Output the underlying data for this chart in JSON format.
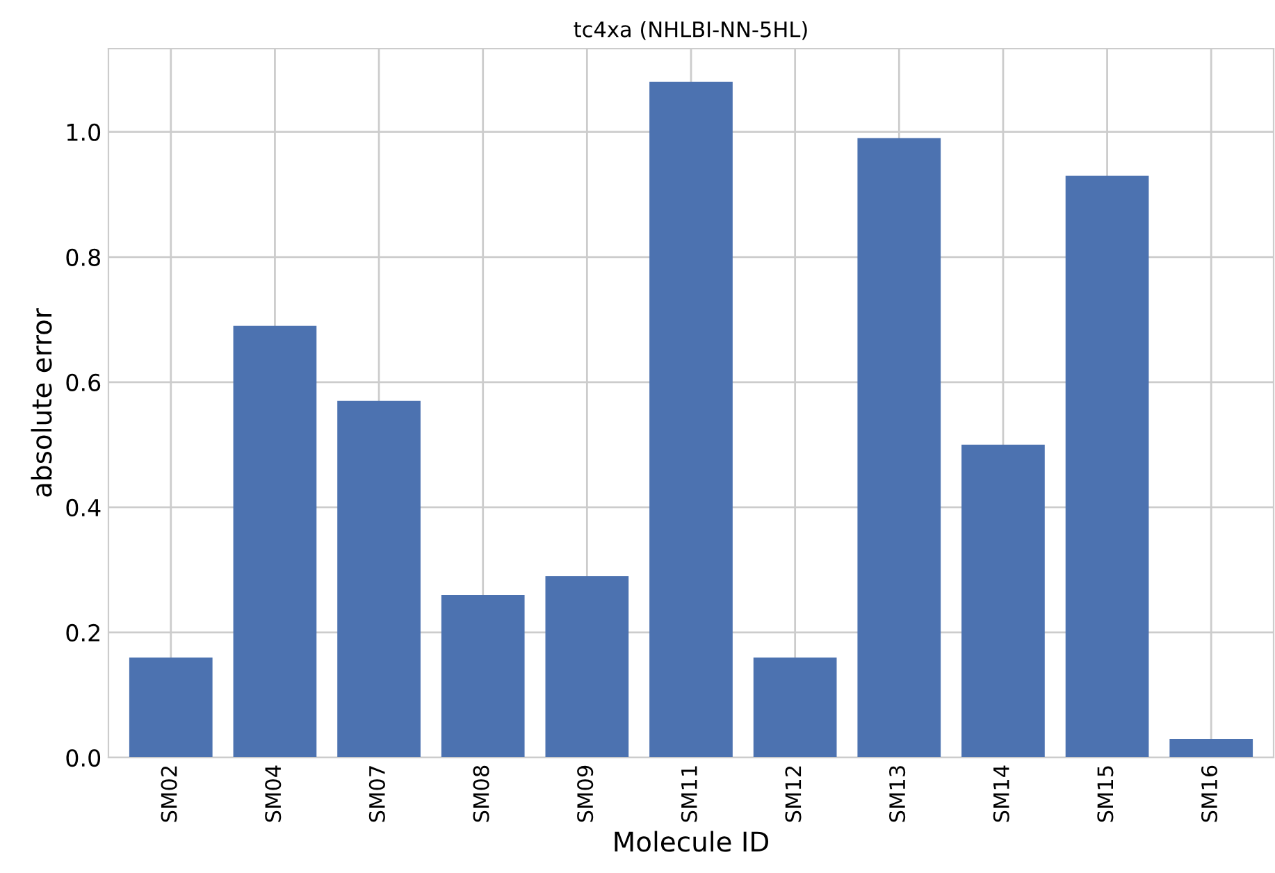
{
  "chart_data": {
    "type": "bar",
    "title": "tc4xa (NHLBI-NN-5HL)",
    "xlabel": "Molecule ID",
    "ylabel": "absolute error",
    "categories": [
      "SM02",
      "SM04",
      "SM07",
      "SM08",
      "SM09",
      "SM11",
      "SM12",
      "SM13",
      "SM14",
      "SM15",
      "SM16"
    ],
    "values": [
      0.16,
      0.69,
      0.57,
      0.26,
      0.29,
      1.08,
      0.16,
      0.99,
      0.5,
      0.93,
      0.03
    ],
    "color": "#4c72b0",
    "ylim": [
      0,
      1.133
    ],
    "yticks": [
      {
        "value": 0,
        "label": "0.0"
      },
      {
        "value": 0.2,
        "label": "0.2"
      },
      {
        "value": 0.4,
        "label": "0.4"
      },
      {
        "value": 0.6,
        "label": "0.6"
      },
      {
        "value": 0.8,
        "label": "0.8"
      },
      {
        "value": 1.0,
        "label": "1.0"
      }
    ],
    "grid": true
  }
}
